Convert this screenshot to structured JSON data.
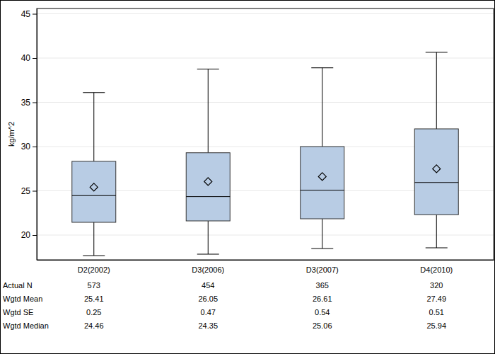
{
  "chart_data": {
    "type": "box",
    "ylabel": "kg/m^2",
    "categories": [
      "D2(2002)",
      "D3(2006)",
      "D3(2007)",
      "D4(2010)"
    ],
    "whisker_low": [
      17.68,
      17.84,
      18.48,
      18.56
    ],
    "q1": [
      21.44,
      21.6,
      21.84,
      22.3
    ],
    "q3": [
      28.33,
      29.3,
      30.0,
      32.0
    ],
    "whisker_high": [
      36.1,
      38.75,
      38.9,
      40.65
    ],
    "row_labels": [
      "Actual N",
      "Wgtd Mean",
      "Wgtd SE",
      "Wgtd Median"
    ],
    "actual_n": [
      573,
      454,
      365,
      320
    ],
    "mean": [
      25.41,
      26.05,
      26.61,
      27.49
    ],
    "se": [
      0.25,
      0.47,
      0.54,
      0.51
    ],
    "median": [
      24.46,
      24.35,
      25.06,
      25.94
    ],
    "color": "#b8cce4",
    "ylim": [
      17.2,
      45.6
    ],
    "yticks": [
      20,
      25,
      30,
      35,
      40,
      45
    ],
    "grid": true
  }
}
